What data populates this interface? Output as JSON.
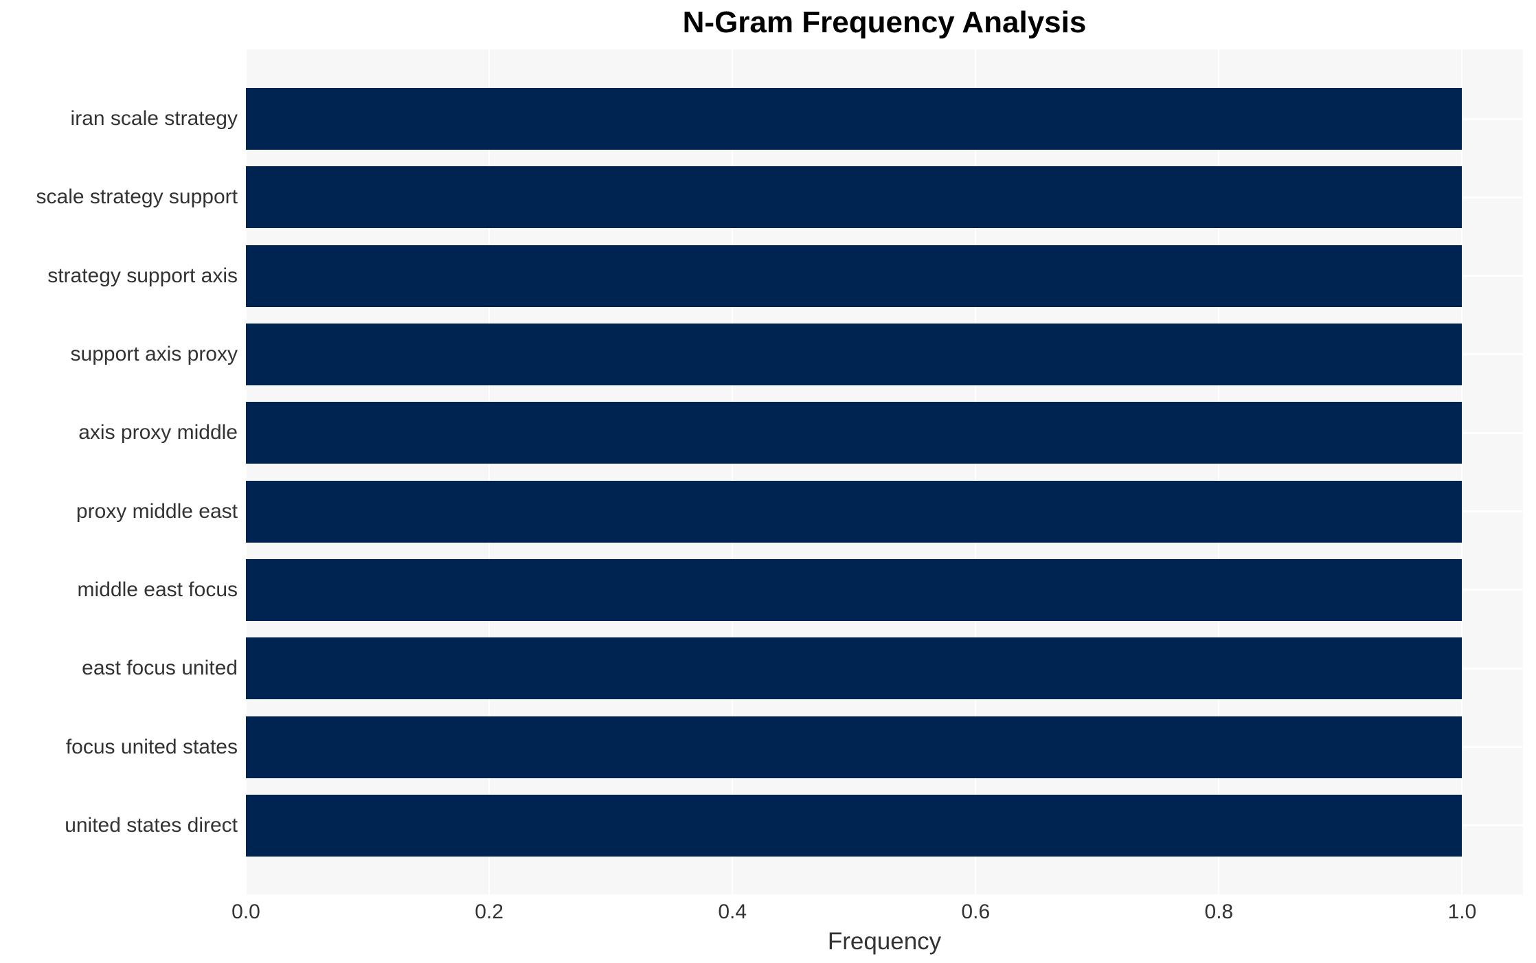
{
  "chart_data": {
    "type": "bar",
    "orientation": "horizontal",
    "title": "N-Gram Frequency Analysis",
    "xlabel": "Frequency",
    "ylabel": "",
    "categories": [
      "iran scale strategy",
      "scale strategy support",
      "strategy support axis",
      "support axis proxy",
      "axis proxy middle",
      "proxy middle east",
      "middle east focus",
      "east focus united",
      "focus united states",
      "united states direct"
    ],
    "values": [
      1.0,
      1.0,
      1.0,
      1.0,
      1.0,
      1.0,
      1.0,
      1.0,
      1.0,
      1.0
    ],
    "xticks": [
      {
        "value": 0.0,
        "label": "0.0"
      },
      {
        "value": 0.2,
        "label": "0.2"
      },
      {
        "value": 0.4,
        "label": "0.4"
      },
      {
        "value": 0.6,
        "label": "0.6"
      },
      {
        "value": 0.8,
        "label": "0.8"
      },
      {
        "value": 1.0,
        "label": "1.0"
      }
    ],
    "xlim": [
      0,
      1.05
    ],
    "grid": true,
    "legend": null,
    "colors": {
      "bar": "#002451",
      "plot_background": "#f7f7f7",
      "figure_background": "#ffffff",
      "gridline": "#ffffff",
      "tick_text": "#333333",
      "title_text": "#000000"
    }
  }
}
